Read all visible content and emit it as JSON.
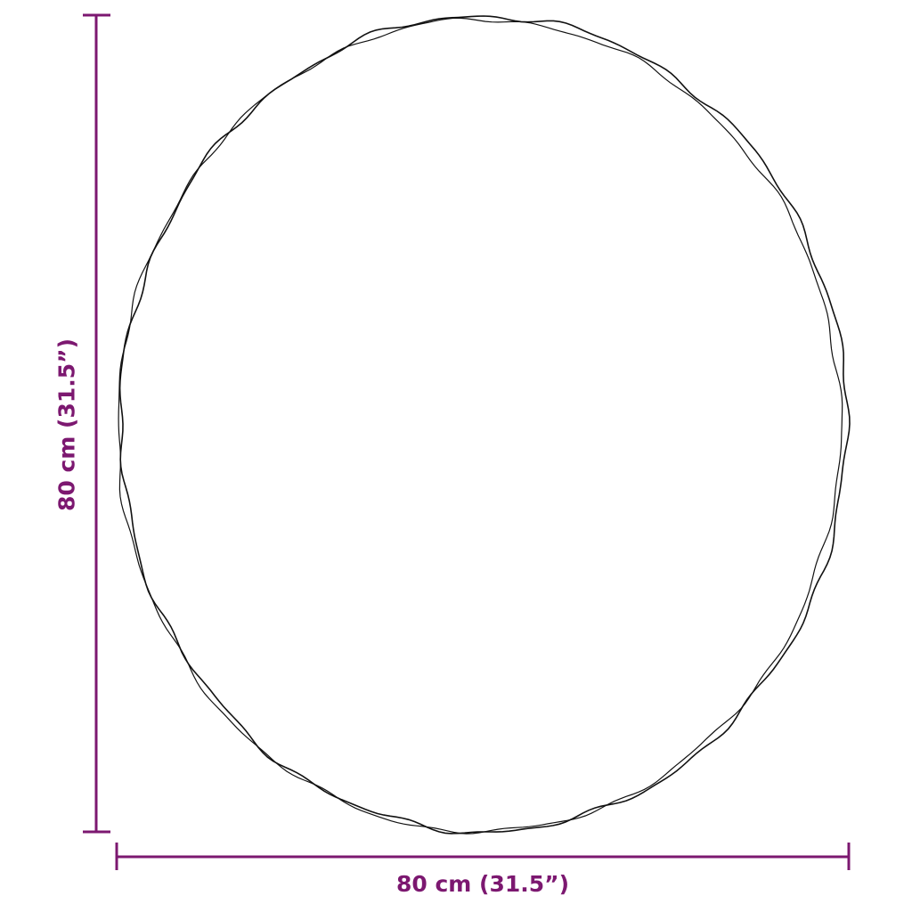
{
  "dimensions": {
    "width_label": "80 cm (31.5”)",
    "height_label": "80 cm (31.5”)"
  },
  "colors": {
    "dimension_line": "#7c1870",
    "outline": "#111111"
  }
}
